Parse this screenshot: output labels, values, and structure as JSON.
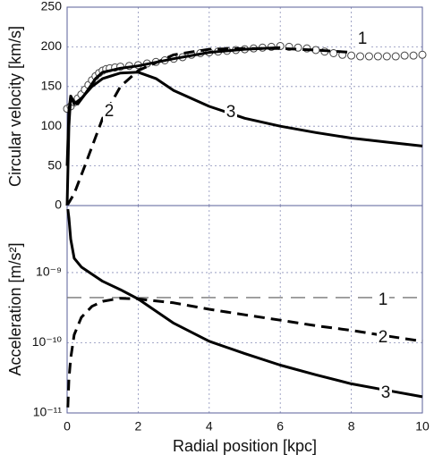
{
  "chart_data": [
    {
      "type": "line",
      "y_label": "Circular velocity [km/s]",
      "xlim": [
        0,
        10
      ],
      "xticks": [
        0,
        2,
        4,
        6,
        8,
        10
      ],
      "ylim": [
        0,
        250
      ],
      "yticks": [
        0,
        50,
        100,
        150,
        200,
        250
      ],
      "grid": true,
      "log_y": false,
      "series": [
        {
          "marker": "circle",
          "color": "#444444",
          "x": [
            0,
            0.1,
            0.2,
            0.3,
            0.4,
            0.5,
            0.6,
            0.7,
            0.8,
            0.9,
            1.0,
            1.1,
            1.2,
            1.35,
            1.5,
            1.75,
            2.0,
            2.25,
            2.5,
            2.75,
            3.0,
            3.25,
            3.5,
            3.75,
            4.0,
            4.25,
            4.5,
            4.75,
            5.0,
            5.25,
            5.5,
            5.75,
            6.0,
            6.25,
            6.5,
            6.75,
            7.0,
            7.25,
            7.5,
            7.75,
            8.0,
            8.25,
            8.5,
            8.75,
            9.0,
            9.25,
            9.5,
            9.75,
            10.0
          ],
          "values": [
            122,
            125,
            130,
            135,
            140,
            146,
            152,
            158,
            163,
            167,
            170,
            172,
            173,
            174,
            175,
            176,
            177,
            179,
            181,
            183,
            185,
            187,
            190,
            192,
            193,
            194,
            195,
            196,
            197,
            198,
            199,
            200,
            201,
            200,
            199,
            198,
            196,
            194,
            192,
            190,
            189,
            188,
            188,
            188,
            188,
            188,
            189,
            189,
            190
          ]
        },
        {
          "name": "1",
          "style": "solid",
          "color": "#000000",
          "x": [
            0,
            0.05,
            0.1,
            0.2,
            0.3,
            0.5,
            0.8,
            1.0,
            1.5,
            2.0,
            3.0,
            4.0,
            5.0,
            6.0
          ],
          "values": [
            50,
            120,
            138,
            130,
            128,
            140,
            160,
            168,
            173,
            176,
            185,
            193,
            197,
            199
          ]
        },
        {
          "name": "2",
          "style": "dashed",
          "color": "#000000",
          "x": [
            0,
            0.2,
            0.5,
            1.0,
            1.5,
            2.0,
            3.0,
            4.0,
            5.0,
            6.0,
            7.0,
            8.0
          ],
          "values": [
            0,
            15,
            50,
            110,
            150,
            170,
            190,
            197,
            198,
            198,
            196,
            193
          ]
        },
        {
          "name": "3",
          "style": "solid",
          "color": "#000000",
          "x": [
            0,
            0.05,
            0.1,
            0.2,
            0.4,
            0.7,
            1.0,
            1.5,
            2.0,
            2.5,
            3.0,
            4.0,
            5.0,
            6.0,
            7.0,
            8.0,
            9.0,
            10.0
          ],
          "values": [
            0,
            100,
            138,
            128,
            135,
            150,
            160,
            167,
            168,
            160,
            145,
            125,
            110,
            100,
            92,
            85,
            80,
            75
          ]
        }
      ]
    },
    {
      "type": "line",
      "y_label": "Acceleration [m/s²]",
      "x_label": "Radial position [kpc]",
      "xlim": [
        0,
        10
      ],
      "xticks": [
        0,
        2,
        4,
        6,
        8,
        10
      ],
      "ylim": [
        1e-11,
        9e-09
      ],
      "log_y": true,
      "grid": true,
      "yticks": [
        {
          "value": 1e-11,
          "label": "10⁻¹¹"
        },
        {
          "value": 1e-10,
          "label": "10⁻¹⁰"
        },
        {
          "value": 1e-09,
          "label": "10⁻⁹"
        }
      ],
      "series": [
        {
          "name": "1",
          "style": "longdash",
          "color": "#777777",
          "x": [
            0,
            10
          ],
          "values": [
            4.4e-10,
            4.4e-10
          ]
        },
        {
          "name": "2",
          "style": "dashed",
          "color": "#000000",
          "x": [
            0.02,
            0.05,
            0.1,
            0.2,
            0.4,
            0.7,
            1.0,
            1.5,
            2.0,
            3.0,
            4.0,
            5.0,
            6.0,
            7.0,
            8.0,
            9.0,
            10.0
          ],
          "values": [
            1.2e-11,
            3e-11,
            6e-11,
            1.3e-10,
            2.3e-10,
            3.3e-10,
            3.9e-10,
            4.3e-10,
            4.2e-10,
            3.7e-10,
            3e-10,
            2.5e-10,
            2.1e-10,
            1.75e-10,
            1.5e-10,
            1.25e-10,
            1.05e-10
          ]
        },
        {
          "name": "3",
          "style": "solid",
          "color": "#000000",
          "x": [
            0.02,
            0.05,
            0.1,
            0.2,
            0.4,
            0.7,
            1.0,
            1.5,
            2.0,
            3.0,
            4.0,
            5.0,
            6.0,
            7.0,
            8.0,
            9.0,
            10.0
          ],
          "values": [
            8e-09,
            6e-09,
            3e-09,
            1.6e-09,
            1.2e-09,
            9.5e-10,
            7.5e-10,
            5.7e-10,
            4.2e-10,
            1.9e-10,
            1.05e-10,
            7e-11,
            4.8e-11,
            3.5e-11,
            2.6e-11,
            2.1e-11,
            1.7e-11
          ]
        }
      ]
    }
  ]
}
